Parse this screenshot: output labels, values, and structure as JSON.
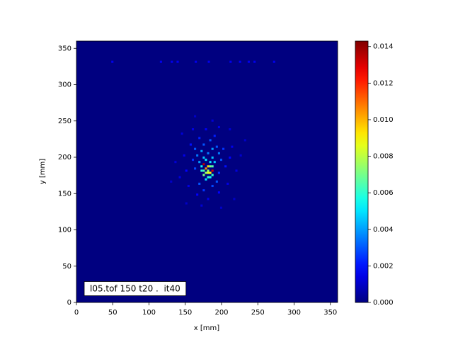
{
  "chart_data": {
    "type": "heatmap",
    "xlabel": "x [mm]",
    "ylabel": "y [mm]",
    "annotation": "l05.tof 150 t20 .  it40",
    "xlim": [
      0,
      360
    ],
    "ylim": [
      0,
      360
    ],
    "xticks": [
      0,
      50,
      100,
      150,
      200,
      250,
      300,
      350
    ],
    "yticks": [
      0,
      50,
      100,
      150,
      200,
      250,
      300,
      350
    ],
    "colormap": "jet",
    "clim": [
      0,
      0.0143
    ],
    "cell_size": 3,
    "cticks": [
      {
        "value": 0,
        "label": "0.000"
      },
      {
        "value": 0.002,
        "label": "0.002"
      },
      {
        "value": 0.004,
        "label": "0.004"
      },
      {
        "value": 0.006,
        "label": "0.006"
      },
      {
        "value": 0.008,
        "label": "0.008"
      },
      {
        "value": 0.01,
        "label": "0.010"
      },
      {
        "value": 0.012,
        "label": "0.012"
      },
      {
        "value": 0.014,
        "label": "0.014"
      }
    ],
    "x": [
      174,
      186,
      177,
      180,
      183,
      180,
      177,
      174,
      183,
      171,
      186,
      180,
      183,
      177,
      174,
      180,
      186,
      171,
      177,
      183,
      174,
      186,
      168,
      189,
      171,
      180,
      186,
      165,
      195,
      192,
      174,
      183,
      162,
      198,
      192,
      168,
      186,
      174,
      195,
      162,
      159,
      201,
      168,
      189,
      156,
      204,
      150,
      210,
      165,
      195,
      180,
      147,
      213,
      177,
      159,
      195,
      141,
      219,
      153,
      207,
      171,
      186,
      135,
      225,
      162,
      198,
      129,
      231,
      144,
      210,
      150,
      216,
      48,
      115,
      130,
      138,
      163,
      181,
      211,
      224,
      236,
      244,
      271
    ],
    "y": [
      189,
      180,
      183,
      186,
      177,
      177,
      177,
      174,
      186,
      180,
      186,
      171,
      171,
      168,
      180,
      180,
      174,
      186,
      195,
      192,
      198,
      198,
      192,
      192,
      207,
      204,
      210,
      201,
      204,
      213,
      216,
      222,
      210,
      195,
      165,
      162,
      159,
      153,
      177,
      183,
      195,
      210,
      225,
      228,
      216,
      186,
      180,
      198,
      147,
      150,
      141,
      201,
      213,
      237,
      237,
      240,
      171,
      180,
      159,
      162,
      132,
      249,
      192,
      201,
      255,
      129,
      165,
      222,
      231,
      237,
      135,
      141,
      330,
      330,
      330,
      330,
      330,
      330,
      330,
      330,
      330,
      330,
      330
    ],
    "values": [
      0.0135,
      0.013,
      0.0105,
      0.0095,
      0.009,
      0.0085,
      0.0075,
      0.007,
      0.007,
      0.006,
      0.0065,
      0.006,
      0.0055,
      0.005,
      0.0065,
      0.0075,
      0.006,
      0.0055,
      0.005,
      0.005,
      0.0045,
      0.0045,
      0.004,
      0.0045,
      0.004,
      0.0035,
      0.004,
      0.0035,
      0.0035,
      0.003,
      0.003,
      0.003,
      0.003,
      0.003,
      0.003,
      0.003,
      0.0028,
      0.0025,
      0.0025,
      0.0028,
      0.0025,
      0.0025,
      0.0022,
      0.0022,
      0.002,
      0.002,
      0.0018,
      0.0018,
      0.0018,
      0.0018,
      0.0015,
      0.0015,
      0.0015,
      0.0016,
      0.0014,
      0.0014,
      0.0013,
      0.0013,
      0.0014,
      0.0014,
      0.0012,
      0.0012,
      0.0012,
      0.0011,
      0.001,
      0.001,
      0.001,
      0.001,
      0.0012,
      0.0011,
      0.001,
      0.001,
      0.0015,
      0.0015,
      0.0015,
      0.0015,
      0.0015,
      0.0015,
      0.0015,
      0.0015,
      0.0015,
      0.0015,
      0.0015
    ]
  }
}
